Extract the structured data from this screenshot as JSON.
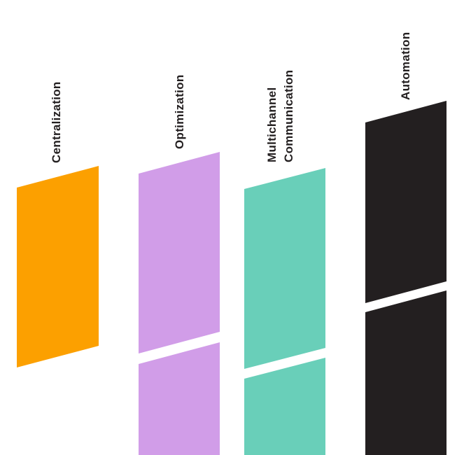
{
  "columns": [
    {
      "id": "centralization",
      "label_lines": [
        "Centralization"
      ],
      "color": "#fca000",
      "segments": 1
    },
    {
      "id": "optimization",
      "label_lines": [
        "Optimization"
      ],
      "color": "#d19de8",
      "segments": 2
    },
    {
      "id": "multichannel-communication",
      "label_lines": [
        "Multichannel",
        "Communication"
      ],
      "color": "#69cfb9",
      "segments": 2
    },
    {
      "id": "automation",
      "label_lines": [
        "Automation"
      ],
      "color": "#231f20",
      "segments": 2
    }
  ]
}
